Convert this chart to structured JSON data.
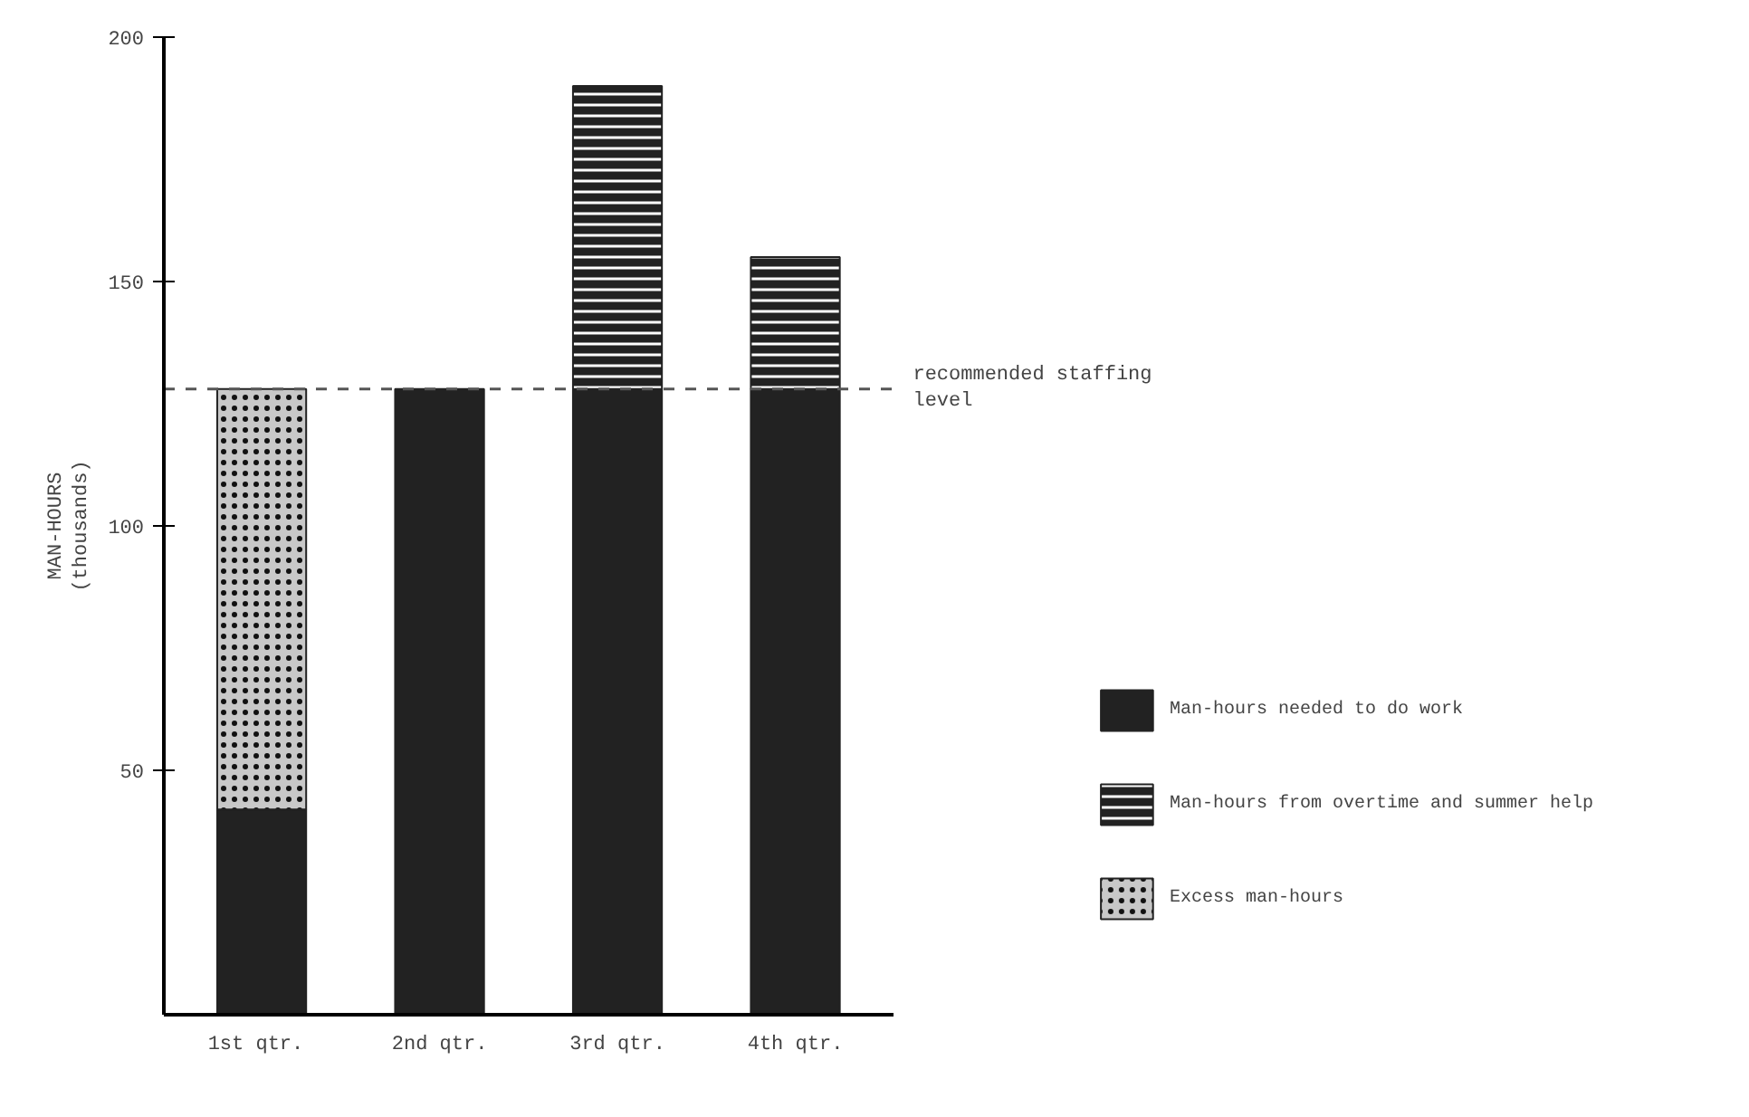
{
  "chart_data": {
    "type": "bar",
    "stacked": true,
    "categories": [
      "1st  qtr.",
      "2nd qtr.",
      "3rd qtr.",
      "4th qtr."
    ],
    "series": [
      {
        "name": "Man-hours needed to do work",
        "color": "#222222",
        "values": [
          42,
          128,
          128,
          128
        ]
      },
      {
        "name": "Man-hours from overtime and summer help",
        "color": "#222222",
        "values": [
          null,
          null,
          62,
          27
        ]
      },
      {
        "name": "Excess man-hours",
        "color": "#c8c8c8",
        "values": [
          86,
          null,
          null,
          null
        ]
      }
    ],
    "ylabel": "MAN-HOURS\n(thousands)",
    "ylim": [
      0,
      200
    ],
    "yticks": [
      50,
      100,
      150,
      200
    ],
    "grid": false,
    "legend": "right",
    "ref_lines": [
      {
        "axis": "y",
        "value": 128,
        "label": "recommended staffing\nlevel",
        "line_style": "dashed",
        "color": "#555555"
      }
    ]
  }
}
